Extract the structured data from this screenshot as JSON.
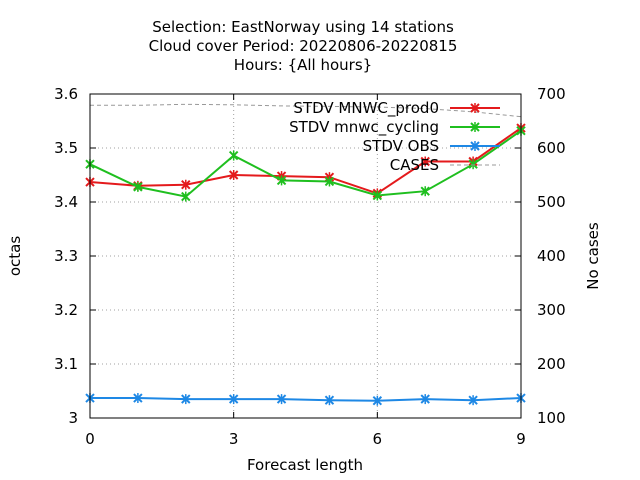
{
  "chart_data": {
    "type": "line",
    "title": [
      "Selection: EastNorway using    14 stations",
      "Cloud cover   Period: 20220806-20220815",
      "Hours: {All hours}"
    ],
    "xlabel": "Forecast length",
    "ylabel": "octas",
    "y2label": "No cases",
    "xlim": [
      0,
      9
    ],
    "ylim": [
      3.0,
      3.6
    ],
    "y2lim": [
      100,
      700
    ],
    "xticks": [
      0,
      3,
      6,
      9
    ],
    "yticks": [
      "3",
      "3.1",
      "3.2",
      "3.3",
      "3.4",
      "3.5",
      "3.6"
    ],
    "y2ticks": [
      "100",
      "200",
      "300",
      "400",
      "500",
      "600",
      "700"
    ],
    "grid": true,
    "legend_position": "top-right",
    "x": [
      0,
      1,
      2,
      3,
      4,
      5,
      6,
      7,
      8,
      9
    ],
    "series": [
      {
        "name": "STDV MNWC_prod0",
        "color": "#e41a1c",
        "marker": "x",
        "axis": "y",
        "values": [
          3.437,
          3.43,
          3.432,
          3.45,
          3.448,
          3.446,
          3.416,
          3.475,
          3.475,
          3.537
        ]
      },
      {
        "name": "STDV mnwc_cycling",
        "color": "#1fbf1f",
        "marker": "x",
        "axis": "y",
        "values": [
          3.47,
          3.428,
          3.41,
          3.486,
          3.44,
          3.438,
          3.412,
          3.42,
          3.47,
          3.532
        ]
      },
      {
        "name": "STDV OBS",
        "color": "#1e88e5",
        "marker": "x",
        "axis": "y",
        "values": [
          3.037,
          3.037,
          3.035,
          3.035,
          3.035,
          3.033,
          3.032,
          3.035,
          3.033,
          3.037
        ]
      },
      {
        "name": "CASES",
        "color": "#999999",
        "marker": "none",
        "dashed": true,
        "axis": "y2",
        "values": [
          679,
          679,
          681,
          680,
          678,
          677,
          676,
          673,
          667,
          658
        ]
      }
    ]
  }
}
